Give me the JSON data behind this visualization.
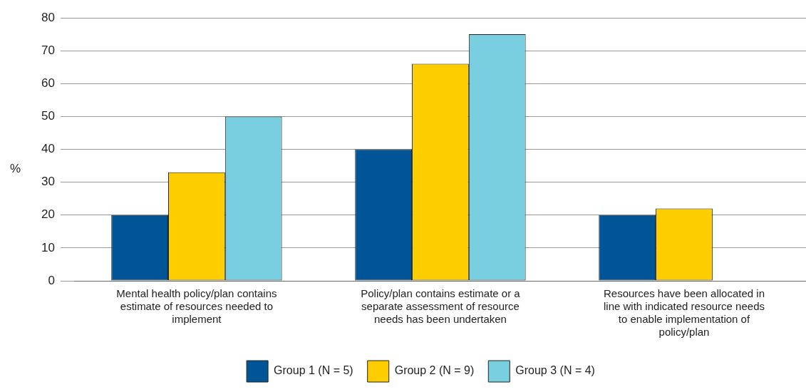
{
  "chart_data": {
    "type": "bar",
    "ylabel": "%",
    "categories": [
      "Mental health policy/plan contains estimate of resources needed to implement",
      "Policy/plan contains estimate or a separate assessment of resource needs has been undertaken",
      "Resources have been allocated in line with indicated resource needs to enable implementation of policy/plan"
    ],
    "series": [
      {
        "name": "Group 1 (N = 5)",
        "color": "#005597",
        "values": [
          20,
          40,
          20
        ]
      },
      {
        "name": "Group 2 (N = 9)",
        "color": "#fecd00",
        "values": [
          33,
          66,
          22
        ]
      },
      {
        "name": "Group 3 (N = 4)",
        "color": "#79cfe0",
        "values": [
          50,
          75,
          0
        ]
      }
    ],
    "ylim": [
      0,
      80
    ],
    "yticks": [
      0,
      10,
      20,
      30,
      40,
      50,
      60,
      70,
      80
    ],
    "grid": "y",
    "legend": "bottom"
  }
}
